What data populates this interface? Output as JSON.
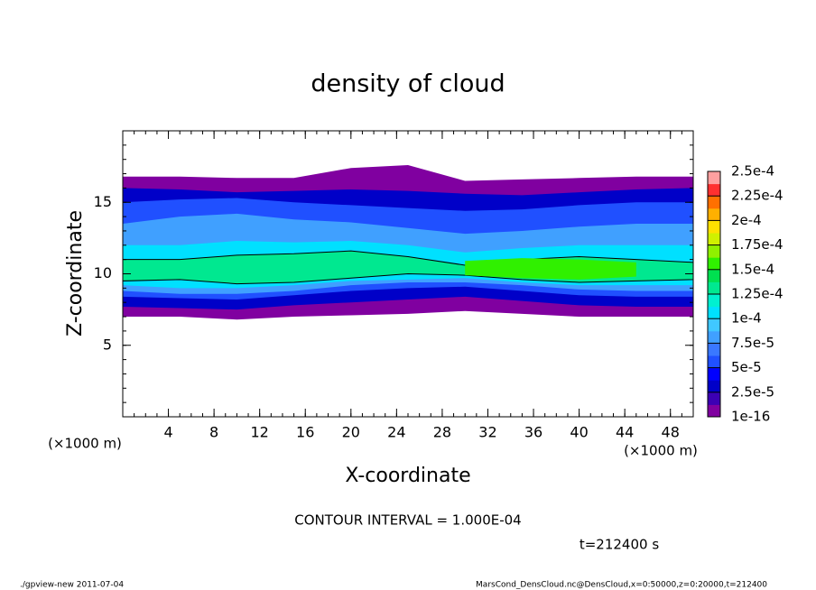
{
  "chart_data": {
    "type": "contour",
    "title": "density of cloud",
    "xlabel": "X-coordinate",
    "ylabel": "Z-coordinate",
    "x_unit": "(×1000 m)",
    "y_unit": "(×1000 m)",
    "xlim": [
      0,
      50
    ],
    "ylim": [
      0,
      20
    ],
    "xticks": [
      4,
      8,
      12,
      16,
      20,
      24,
      28,
      32,
      36,
      40,
      44,
      48
    ],
    "yticks": [
      5,
      10,
      15
    ],
    "colorbar_lim": [
      0,
      0.00025
    ],
    "colorbar_ticks": [
      {
        "value": 1e-16,
        "label": "1e-16"
      },
      {
        "value": 2.5e-05,
        "label": "2.5e-5"
      },
      {
        "value": 5e-05,
        "label": "5e-5"
      },
      {
        "value": 7.5e-05,
        "label": "7.5e-5"
      },
      {
        "value": 0.0001,
        "label": "1e-4"
      },
      {
        "value": 0.000125,
        "label": "1.25e-4"
      },
      {
        "value": 0.00015,
        "label": "1.5e-4"
      },
      {
        "value": 0.000175,
        "label": "1.75e-4"
      },
      {
        "value": 0.0002,
        "label": "2e-4"
      },
      {
        "value": 0.000225,
        "label": "2.25e-4"
      },
      {
        "value": 0.00025,
        "label": "2.5e-4"
      }
    ],
    "colors": [
      "#8000a0",
      "#3c00b4",
      "#0000c8",
      "#0000ff",
      "#2050ff",
      "#3a78ff",
      "#40a0ff",
      "#40c8ff",
      "#00e0ff",
      "#00f0d0",
      "#00e890",
      "#00e050",
      "#30f000",
      "#90f000",
      "#d0f000",
      "#ffe000",
      "#ffb000",
      "#ff7000",
      "#ff3030",
      "#ffa0a0"
    ],
    "x": [
      0,
      5,
      10,
      15,
      20,
      25,
      30,
      35,
      40,
      45,
      50
    ],
    "bands": [
      {
        "level": 0,
        "top": [
          16.8,
          16.8,
          16.7,
          16.7,
          17.4,
          17.6,
          16.5,
          16.6,
          16.7,
          16.8,
          16.8
        ],
        "bottom": [
          7.0,
          7.0,
          6.8,
          7.0,
          7.1,
          7.2,
          7.4,
          7.2,
          7.0,
          7.0,
          7.0
        ]
      },
      {
        "level": 2,
        "top": [
          16.0,
          15.9,
          15.7,
          15.8,
          15.9,
          15.8,
          15.6,
          15.5,
          15.7,
          15.9,
          16.0
        ],
        "bottom": [
          7.7,
          7.6,
          7.5,
          7.8,
          8.0,
          8.2,
          8.4,
          8.1,
          7.8,
          7.7,
          7.7
        ]
      },
      {
        "level": 4,
        "top": [
          15.0,
          15.2,
          15.3,
          15.0,
          14.8,
          14.6,
          14.4,
          14.5,
          14.8,
          15.0,
          15.0
        ],
        "bottom": [
          8.4,
          8.3,
          8.2,
          8.5,
          8.8,
          9.0,
          9.1,
          8.8,
          8.5,
          8.4,
          8.4
        ]
      },
      {
        "level": 6,
        "top": [
          13.5,
          14.0,
          14.2,
          13.8,
          13.6,
          13.2,
          12.8,
          13.0,
          13.3,
          13.5,
          13.5
        ],
        "bottom": [
          8.8,
          8.6,
          8.6,
          8.8,
          9.2,
          9.4,
          9.4,
          9.2,
          8.9,
          8.8,
          8.8
        ]
      },
      {
        "level": 8,
        "top": [
          12.0,
          12.0,
          12.3,
          12.2,
          12.3,
          12.0,
          11.5,
          11.8,
          12.0,
          12.0,
          12.0
        ],
        "bottom": [
          9.2,
          9.0,
          9.0,
          9.2,
          9.5,
          9.6,
          9.7,
          9.4,
          9.2,
          9.2,
          9.2
        ]
      },
      {
        "level": 10,
        "contour": true,
        "top": [
          11.0,
          11.0,
          11.3,
          11.4,
          11.6,
          11.2,
          10.6,
          11.0,
          11.2,
          11.0,
          10.8
        ],
        "bottom": [
          9.5,
          9.6,
          9.3,
          9.4,
          9.7,
          10.0,
          9.9,
          9.6,
          9.4,
          9.5,
          9.6
        ]
      },
      {
        "level": 12,
        "top": [
          null,
          null,
          null,
          null,
          null,
          null,
          10.9,
          11.1,
          11.0,
          10.8,
          null
        ],
        "bottom": [
          null,
          null,
          null,
          null,
          null,
          null,
          9.9,
          9.7,
          9.6,
          9.8,
          null
        ]
      }
    ],
    "annotation": "CONTOUR INTERVAL = 1.000E-04",
    "time": "t=212400 s",
    "footer_left": "./gpview-new  2011-07-04",
    "footer_right": "MarsCond_DensCloud.nc@DensCloud,x=0:50000,z=0:20000,t=212400"
  }
}
